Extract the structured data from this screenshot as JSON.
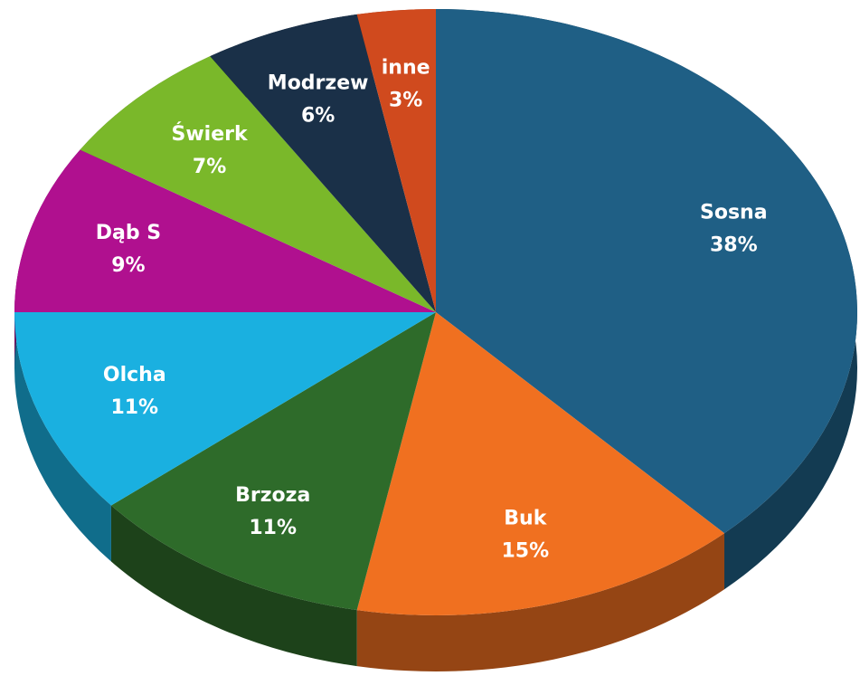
{
  "chart_data": {
    "type": "pie",
    "categories": [
      "Sosna",
      "Buk",
      "Brzoza",
      "Olcha",
      "Dąb S",
      "Świerk",
      "Modrzew",
      "inne"
    ],
    "values": [
      38,
      15,
      11,
      11,
      9,
      7,
      6,
      3
    ],
    "value_labels": [
      "38%",
      "15%",
      "11%",
      "11%",
      "9%",
      "7%",
      "6%",
      "3%"
    ],
    "colors": [
      "#1f5f85",
      "#f07020",
      "#2e6b2a",
      "#1ab0e0",
      "#b0108f",
      "#7ab82a",
      "#1a3048",
      "#d04a1e"
    ]
  }
}
